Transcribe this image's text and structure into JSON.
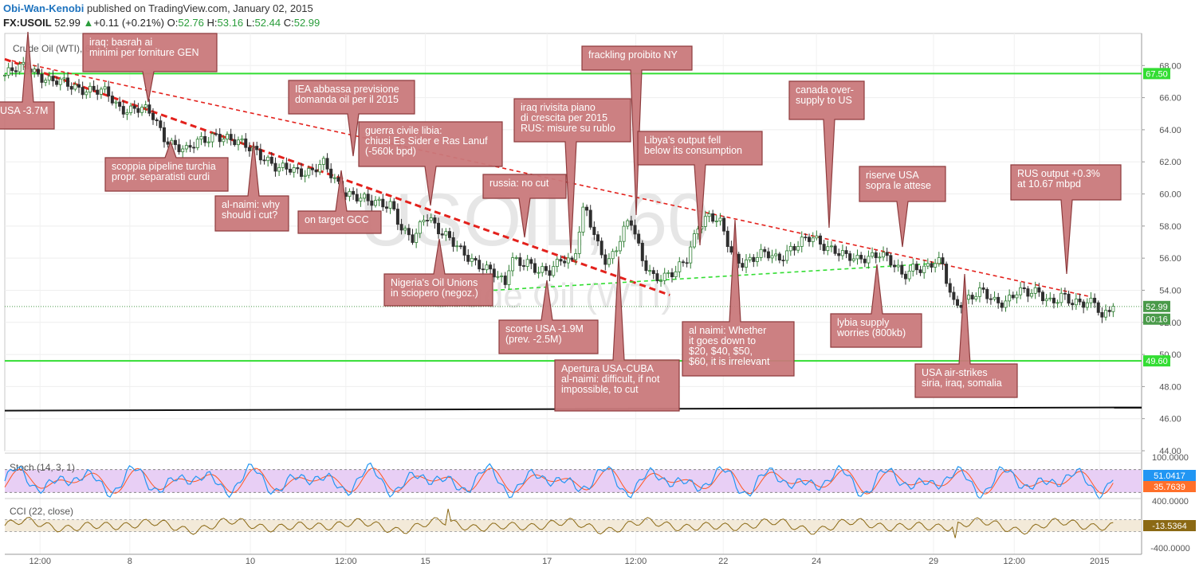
{
  "header": {
    "author": "Obi-Wan-Kenobi",
    "published_text": "published on TradingView.com, January 02, 2015",
    "symbol": "FX:USOIL",
    "last": "52.99",
    "change": "+0.11 (+0.21%)",
    "open_label": "O:",
    "open": "52.76",
    "high_label": "H:",
    "high": "53.16",
    "low_label": "L:",
    "low": "52.44",
    "close_label": "C:",
    "close": "52.99"
  },
  "colors": {
    "candle_up": "#2e7d32",
    "candle_down": "#2e2e2e",
    "callout_fill": "#c9797b",
    "callout_stroke": "#8e3b3d",
    "trend_red": "#e3211c",
    "support_green": "#33dd33",
    "stoch_bg": "#e8cff5",
    "stoch_k": "#2196f3",
    "stoch_d": "#ff5722",
    "cci_line": "#8b6914",
    "cci_bg": "#f3ead9"
  },
  "chart_data": [
    {
      "type": "candlestick",
      "title": "Crude Oil (WTI), 60, FXCM",
      "watermark_main": "USOIL, 60",
      "watermark_sub": "Crude Oil (WTI)",
      "ylim": [
        44,
        70
      ],
      "y_ticks": [
        "68.00",
        "66.00",
        "64.00",
        "62.00",
        "60.00",
        "58.00",
        "56.00",
        "54.00",
        "52.00",
        "50.00",
        "48.00",
        "46.00",
        "44.00"
      ],
      "x_ticks": [
        "12:00",
        "8",
        "10",
        "12:00",
        "15",
        "17",
        "12:00",
        "22",
        "24",
        "29",
        "12:00",
        "2015"
      ],
      "price_tags": [
        {
          "label": "67.50",
          "value": 67.5,
          "color": "#33dd33"
        },
        {
          "label": "52.99",
          "value": 52.99,
          "color": "#4a9a4a"
        },
        {
          "label": "00:16",
          "value": 52.2,
          "color": "#4a9a4a"
        },
        {
          "label": "49.60",
          "value": 49.6,
          "color": "#33dd33"
        }
      ],
      "horizontal_lines": [
        {
          "name": "resistance-67-50",
          "value": 67.5,
          "color": "#33dd33"
        },
        {
          "name": "support-49-60",
          "value": 49.6,
          "color": "#33dd33"
        },
        {
          "name": "last-price-dotted",
          "value": 52.99,
          "color": "#4a9a4a"
        }
      ],
      "trendlines": [
        {
          "name": "red-dashed-thick",
          "points": [
            [
              0,
              68.4
            ],
            [
              0.585,
              53.7
            ]
          ],
          "color": "#e3211c"
        },
        {
          "name": "red-dashed-thin",
          "points": [
            [
              0,
              68.4
            ],
            [
              0.955,
              53.6
            ]
          ],
          "color": "#e3211c"
        },
        {
          "name": "green-dashed",
          "points": [
            [
              0.43,
              54.0
            ],
            [
              0.825,
              55.7
            ]
          ],
          "color": "#33dd33"
        },
        {
          "name": "black-solid",
          "points": [
            [
              0,
              46.5
            ],
            [
              1,
              46.7
            ]
          ],
          "color": "#111111"
        }
      ],
      "price_path": [
        [
          0,
          67.4
        ],
        [
          0.02,
          68.0
        ],
        [
          0.04,
          67.0
        ],
        [
          0.07,
          66.6
        ],
        [
          0.09,
          66.2
        ],
        [
          0.1,
          65.4
        ],
        [
          0.12,
          65.3
        ],
        [
          0.13,
          64.8
        ],
        [
          0.14,
          63.6
        ],
        [
          0.16,
          62.6
        ],
        [
          0.17,
          63.2
        ],
        [
          0.185,
          63.8
        ],
        [
          0.19,
          63.6
        ],
        [
          0.2,
          63.2
        ],
        [
          0.22,
          62.9
        ],
        [
          0.24,
          61.4
        ],
        [
          0.25,
          61.6
        ],
        [
          0.27,
          61.4
        ],
        [
          0.28,
          61.8
        ],
        [
          0.29,
          60.9
        ],
        [
          0.3,
          60.2
        ],
        [
          0.32,
          59.4
        ],
        [
          0.34,
          59.5
        ],
        [
          0.35,
          57.6
        ],
        [
          0.36,
          57.0
        ],
        [
          0.37,
          58.8
        ],
        [
          0.375,
          58.5
        ],
        [
          0.38,
          58.0
        ],
        [
          0.4,
          56.4
        ],
        [
          0.42,
          55.6
        ],
        [
          0.43,
          55.0
        ],
        [
          0.44,
          54.2
        ],
        [
          0.445,
          56.0
        ],
        [
          0.46,
          55.8
        ],
        [
          0.47,
          55.0
        ],
        [
          0.48,
          55.1
        ],
        [
          0.49,
          56.2
        ],
        [
          0.5,
          55.8
        ],
        [
          0.51,
          59.2
        ],
        [
          0.52,
          57.0
        ],
        [
          0.53,
          55.8
        ],
        [
          0.54,
          57.0
        ],
        [
          0.55,
          58.4
        ],
        [
          0.56,
          56.0
        ],
        [
          0.57,
          55.0
        ],
        [
          0.58,
          54.8
        ],
        [
          0.59,
          55.0
        ],
        [
          0.6,
          56.0
        ],
        [
          0.61,
          58.2
        ],
        [
          0.62,
          58.6
        ],
        [
          0.63,
          58.0
        ],
        [
          0.64,
          56.2
        ],
        [
          0.65,
          55.8
        ],
        [
          0.67,
          56.2
        ],
        [
          0.68,
          56.0
        ],
        [
          0.69,
          56.6
        ],
        [
          0.71,
          57.2
        ],
        [
          0.72,
          56.9
        ],
        [
          0.73,
          56.6
        ],
        [
          0.74,
          56.0
        ],
        [
          0.75,
          55.8
        ],
        [
          0.76,
          56.2
        ],
        [
          0.77,
          56.4
        ],
        [
          0.78,
          55.6
        ],
        [
          0.79,
          54.8
        ],
        [
          0.8,
          55.6
        ],
        [
          0.81,
          55.4
        ],
        [
          0.82,
          55.7
        ],
        [
          0.825,
          55.4
        ],
        [
          0.83,
          54.2
        ],
        [
          0.835,
          53.2
        ],
        [
          0.85,
          53.6
        ],
        [
          0.86,
          53.8
        ],
        [
          0.87,
          53.3
        ],
        [
          0.88,
          53.4
        ],
        [
          0.89,
          53.9
        ],
        [
          0.9,
          53.7
        ],
        [
          0.91,
          53.9
        ],
        [
          0.92,
          53.4
        ],
        [
          0.93,
          53.6
        ],
        [
          0.94,
          53.0
        ],
        [
          0.95,
          53.3
        ],
        [
          0.96,
          53.5
        ],
        [
          0.965,
          52.2
        ],
        [
          0.975,
          52.99
        ]
      ]
    },
    {
      "type": "line",
      "title": "Stoch (14, 3, 1)",
      "series": [
        {
          "name": "%K",
          "current": "51.0417",
          "color": "#2196f3"
        },
        {
          "name": "%D",
          "current": "35.7639",
          "color": "#ff5722"
        }
      ],
      "y_ticks": [
        "100.0000"
      ],
      "levels": [
        80,
        20
      ]
    },
    {
      "type": "line",
      "title": "CCI (22, close)",
      "series": [
        {
          "name": "CCI",
          "current": "-13.5364",
          "color": "#8b6914"
        }
      ],
      "y_ticks": [
        "400.0000",
        "-400.0000"
      ],
      "levels": [
        100,
        -100
      ]
    }
  ],
  "annotations": [
    {
      "name": "ann-usa-3-7m",
      "lines": [
        "USA -3.7M"
      ]
    },
    {
      "name": "ann-basrah",
      "lines": [
        "iraq: basrah ai",
        "minimi per forniture GEN"
      ]
    },
    {
      "name": "ann-scoppia-pipeline",
      "lines": [
        "scoppia pipeline turchia",
        "propr. separatisti curdi"
      ]
    },
    {
      "name": "ann-al-naimi-why",
      "lines": [
        "al-naimi: why",
        "should i cut?"
      ]
    },
    {
      "name": "ann-iea",
      "lines": [
        "IEA abbassa previsione",
        "domanda oil per il 2015"
      ]
    },
    {
      "name": "ann-on-target-gcc",
      "lines": [
        "on target GCC"
      ]
    },
    {
      "name": "ann-guerra-libia",
      "lines": [
        "guerra civile libia:",
        "chiusi Es Sider e Ras Lanuf",
        "(-560k bpd)"
      ]
    },
    {
      "name": "ann-nigeria",
      "lines": [
        "Nigeria's Oil Unions",
        "in sciopero (negoz.)"
      ]
    },
    {
      "name": "ann-russia-no-cut",
      "lines": [
        "russia: no cut"
      ]
    },
    {
      "name": "ann-scorte-usa",
      "lines": [
        "scorte USA -1.9M",
        "(prev. -2.5M)"
      ]
    },
    {
      "name": "ann-iraq-rivisita",
      "lines": [
        "iraq rivisita piano",
        "di crescita per 2015",
        "RUS: misure su rublo"
      ]
    },
    {
      "name": "ann-frackling",
      "lines": [
        "frackling proibito NY"
      ]
    },
    {
      "name": "ann-apertura-cuba",
      "lines": [
        "Apertura USA-CUBA",
        "al-naimi: difficult, if not",
        "impossible, to cut"
      ]
    },
    {
      "name": "ann-libya-output",
      "lines": [
        "Libya's output fell",
        "below its consumption"
      ]
    },
    {
      "name": "ann-al-naimi-whether",
      "lines": [
        "al naimi: Whether",
        "it goes down to",
        "$20, $40, $50,",
        "$60, it is irrelevant"
      ]
    },
    {
      "name": "ann-canada",
      "lines": [
        "canada over-",
        "supply to US"
      ]
    },
    {
      "name": "ann-riserve-usa",
      "lines": [
        "riserve USA",
        "sopra le attese"
      ]
    },
    {
      "name": "ann-lybia-supply",
      "lines": [
        "lybia supply",
        "worries (800kb)"
      ]
    },
    {
      "name": "ann-usa-airstrikes",
      "lines": [
        "USA air-strikes",
        "siria, iraq, somalia"
      ]
    },
    {
      "name": "ann-rus-output",
      "lines": [
        "RUS output +0.3%",
        "at 10.67 mbpd"
      ]
    }
  ]
}
